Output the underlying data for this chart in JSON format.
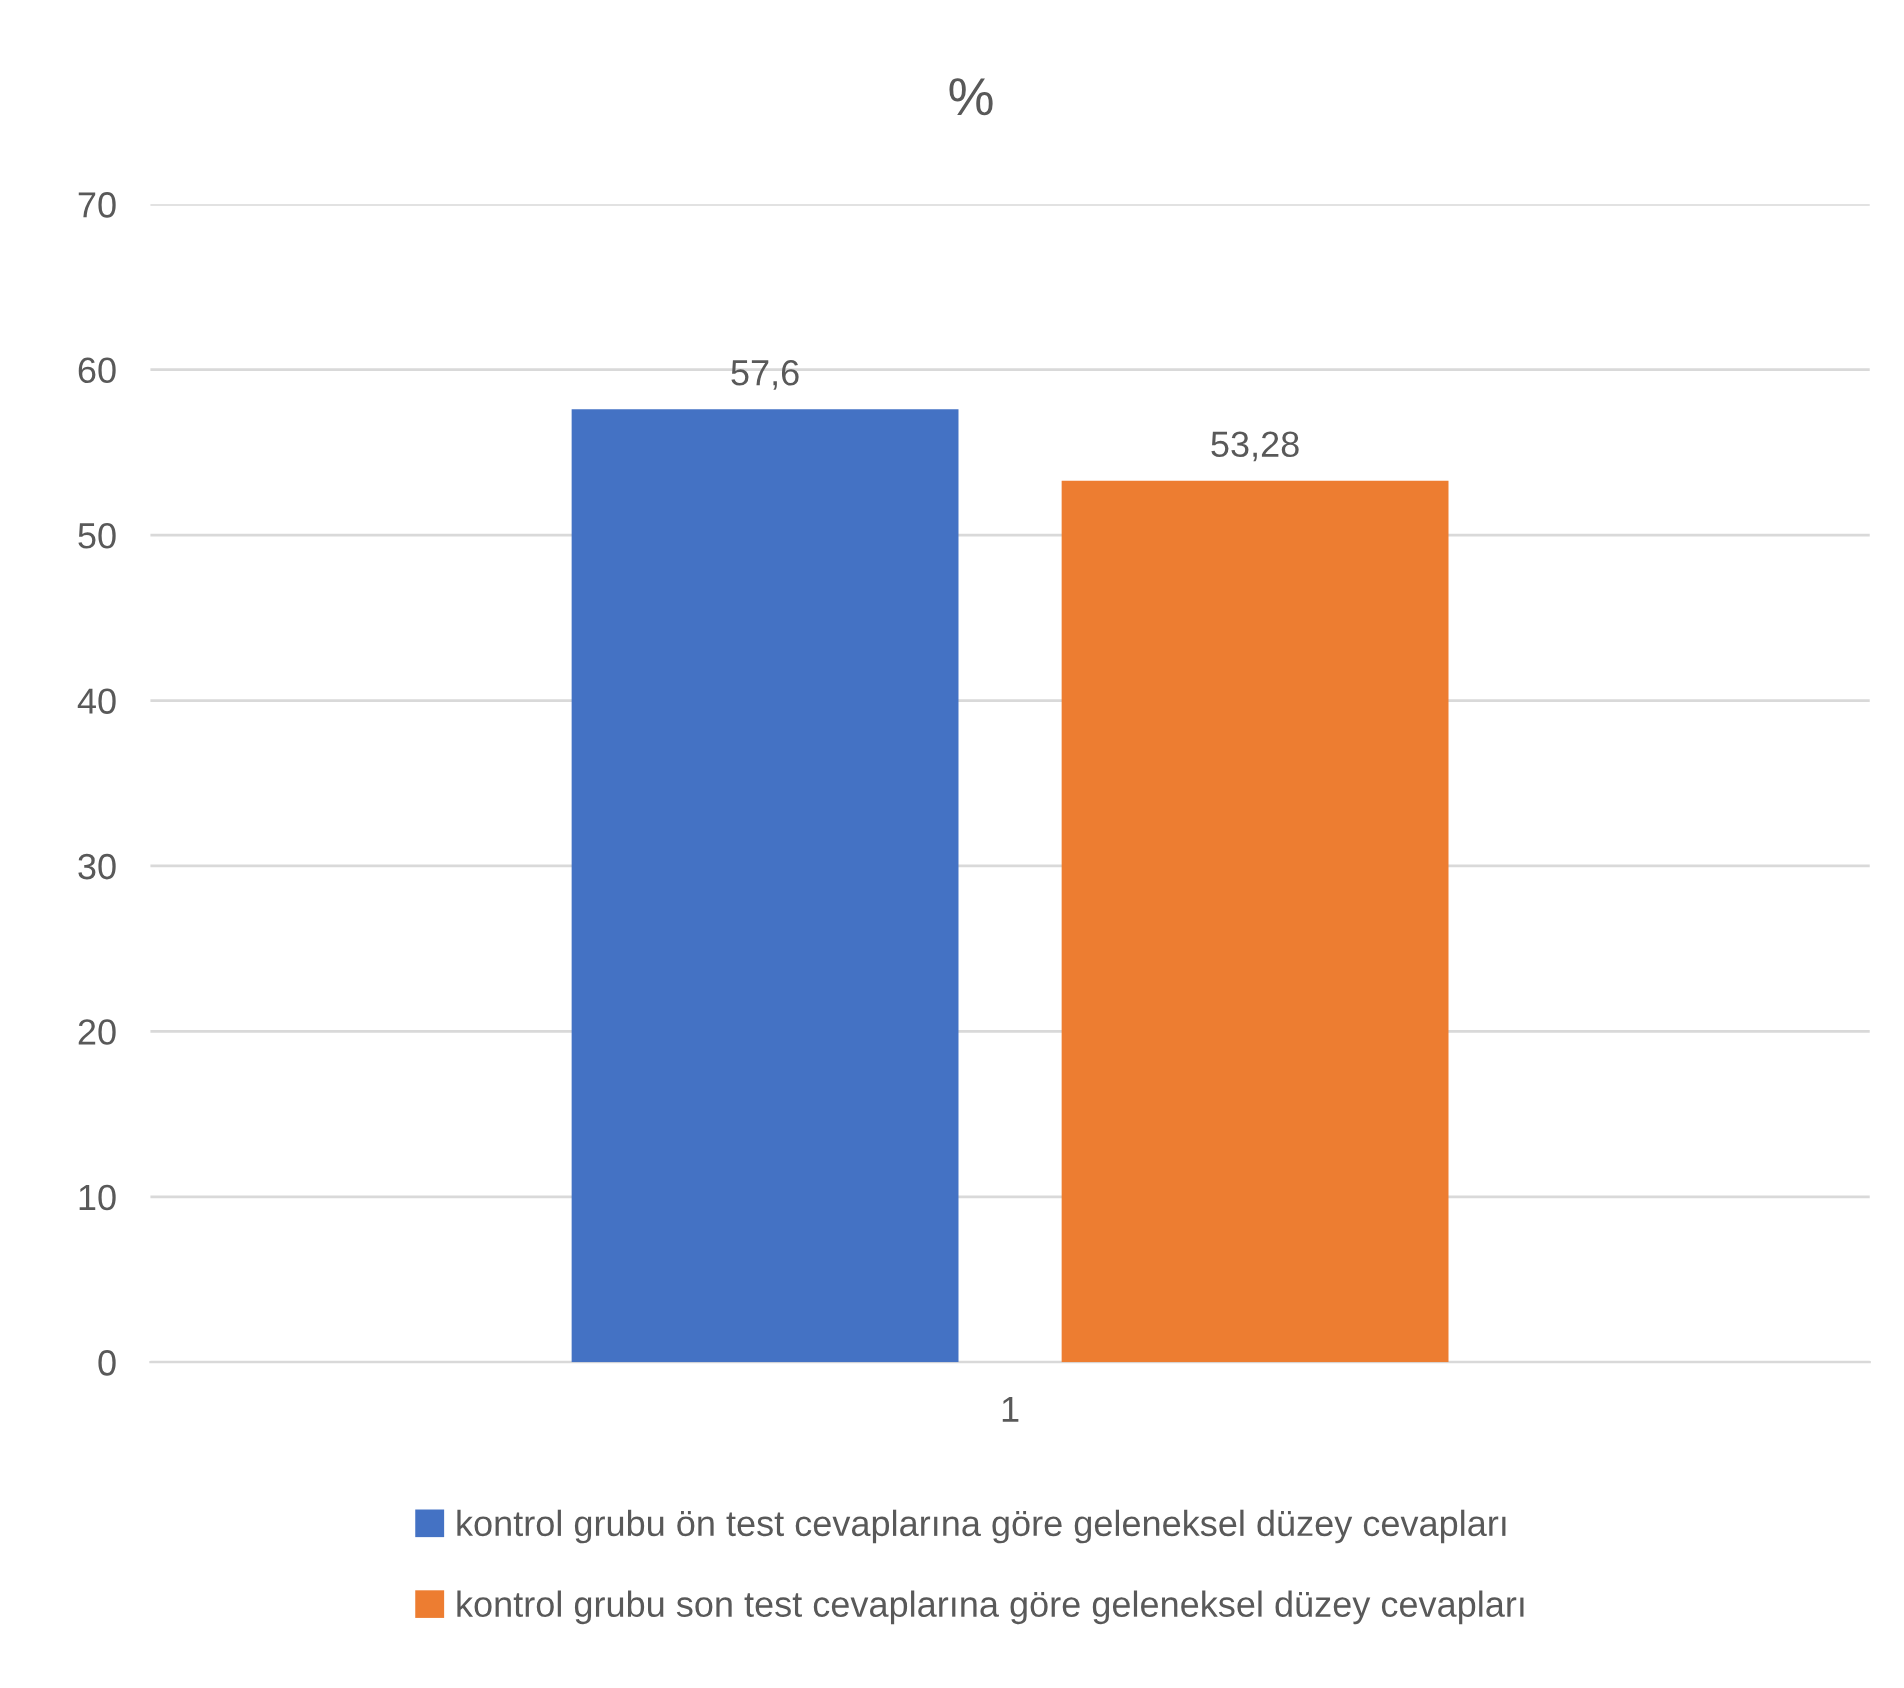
{
  "chart_data": {
    "type": "bar",
    "title": "%",
    "categories": [
      "1"
    ],
    "series": [
      {
        "name": "kontrol grubu ön test cevaplarına göre geleneksel düzey cevapları",
        "color": "#4472c4",
        "values": [
          57.6
        ],
        "value_labels": [
          "57,6"
        ]
      },
      {
        "name": "kontrol grubu son test cevaplarına göre geleneksel düzey cevapları",
        "color": "#ed7d31",
        "values": [
          53.28
        ],
        "value_labels": [
          "53,28"
        ]
      }
    ],
    "ylim": [
      0,
      70
    ],
    "yticks": [
      0,
      10,
      20,
      30,
      40,
      50,
      60,
      70
    ],
    "grid": "y",
    "legend": "bottom"
  }
}
